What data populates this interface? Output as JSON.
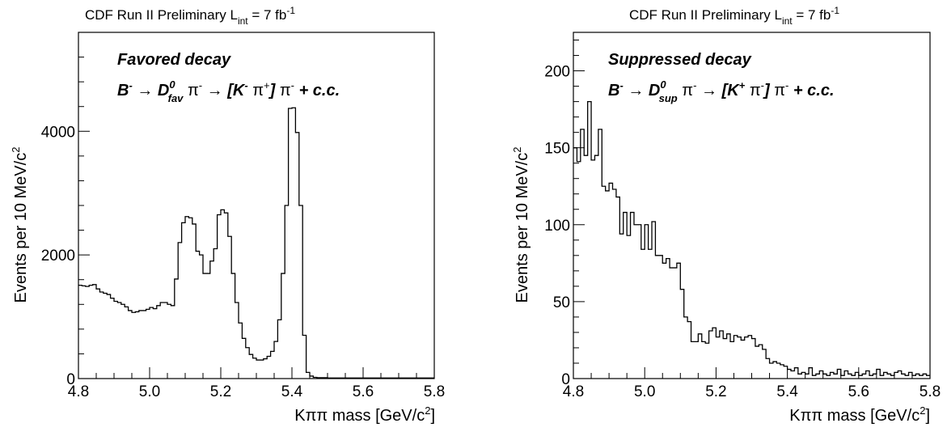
{
  "chart_data": [
    {
      "type": "histogram",
      "header": {
        "text": "CDF Run II Preliminary L",
        "sub": "int",
        "mid": " = 7 fb",
        "sup": "-1"
      },
      "annotation": {
        "line1": "Favored decay",
        "line2": {
          "b": "B",
          "b_sup": "-",
          "arrow1": " → ",
          "d": "D",
          "d_sup": "0",
          "d_sub": "fav",
          "pi1": " π",
          "pi1_sup": "-",
          "arrow2": " → ",
          "open": "[K",
          "k_sup": "-",
          "pi2": " π",
          "pi2_sup": "+",
          "close": "]",
          "pi3": " π",
          "pi3_sup": "-",
          "cc": " + c.c."
        }
      },
      "xlabel": {
        "main": "Kππ mass [GeV/c",
        "sup": "2",
        "end": "]"
      },
      "ylabel": {
        "main": "Events per 10 MeV/c",
        "sup": "2"
      },
      "xlim": [
        4.8,
        5.8
      ],
      "ylim": [
        0,
        5600
      ],
      "xticks": [
        "4.8",
        "5.0",
        "5.2",
        "5.4",
        "5.6",
        "5.8"
      ],
      "yticks": [
        "0",
        "2000",
        "4000"
      ],
      "bin_width": 0.01,
      "values": [
        1510,
        1500,
        1490,
        1510,
        1520,
        1450,
        1400,
        1380,
        1360,
        1300,
        1250,
        1230,
        1200,
        1160,
        1100,
        1070,
        1080,
        1100,
        1100,
        1120,
        1150,
        1130,
        1180,
        1230,
        1230,
        1200,
        1180,
        1610,
        2200,
        2520,
        2620,
        2600,
        2500,
        2060,
        2000,
        1700,
        1700,
        1900,
        2100,
        2650,
        2730,
        2680,
        2300,
        1700,
        1230,
        900,
        650,
        500,
        390,
        330,
        300,
        300,
        320,
        360,
        440,
        600,
        950,
        1700,
        2800,
        4370,
        4380,
        3980,
        2800,
        700,
        100,
        40,
        20,
        15,
        15,
        15,
        10,
        10,
        10,
        10,
        10,
        10,
        10,
        10,
        10,
        10,
        10,
        10,
        10,
        10,
        10,
        10,
        10,
        10,
        10,
        10,
        10,
        10,
        10,
        10,
        10,
        10,
        10,
        10,
        10,
        10
      ]
    },
    {
      "type": "histogram",
      "header": {
        "text": "CDF Run II Preliminary L",
        "sub": "int",
        "mid": " = 7 fb",
        "sup": "-1"
      },
      "annotation": {
        "line1": "Suppressed decay",
        "line2": {
          "b": "B",
          "b_sup": "-",
          "arrow1": " → ",
          "d": "D",
          "d_sup": "0",
          "d_sub": "sup",
          "pi1": " π",
          "pi1_sup": "-",
          "arrow2": " → ",
          "open": "[K",
          "k_sup": "+",
          "pi2": " π",
          "pi2_sup": "-",
          "close": "]",
          "pi3": " π",
          "pi3_sup": "-",
          "cc": " + c.c."
        }
      },
      "xlabel": {
        "main": "Kππ mass [GeV/c",
        "sup": "2",
        "end": "]"
      },
      "ylabel": {
        "main": "Events per 10 MeV/c",
        "sup": "2"
      },
      "xlim": [
        4.8,
        5.8
      ],
      "ylim": [
        0,
        225
      ],
      "xticks": [
        "4.8",
        "5.0",
        "5.2",
        "5.4",
        "5.6",
        "5.8"
      ],
      "yticks": [
        "0",
        "50",
        "100",
        "150",
        "200"
      ],
      "bin_width": 0.01,
      "values": [
        150,
        141,
        162,
        145,
        180,
        142,
        145,
        162,
        125,
        122,
        127,
        123,
        118,
        94,
        108,
        93,
        108,
        100,
        100,
        84,
        100,
        84,
        102,
        80,
        80,
        75,
        78,
        72,
        72,
        75,
        58,
        40,
        37,
        24,
        24,
        29,
        24,
        23,
        31,
        33,
        27,
        31,
        26,
        29,
        24,
        28,
        27,
        25,
        27,
        28,
        26,
        21,
        22,
        19,
        13,
        10,
        11,
        10,
        9,
        8,
        6,
        5,
        7,
        3,
        4,
        3,
        7,
        2,
        3,
        5,
        3,
        2,
        4,
        3,
        6,
        2,
        5,
        3,
        2,
        4,
        2,
        3,
        5,
        2,
        3,
        6,
        2,
        4,
        3,
        2,
        4,
        5,
        3,
        2,
        4,
        2,
        3,
        2,
        3,
        2
      ]
    }
  ]
}
